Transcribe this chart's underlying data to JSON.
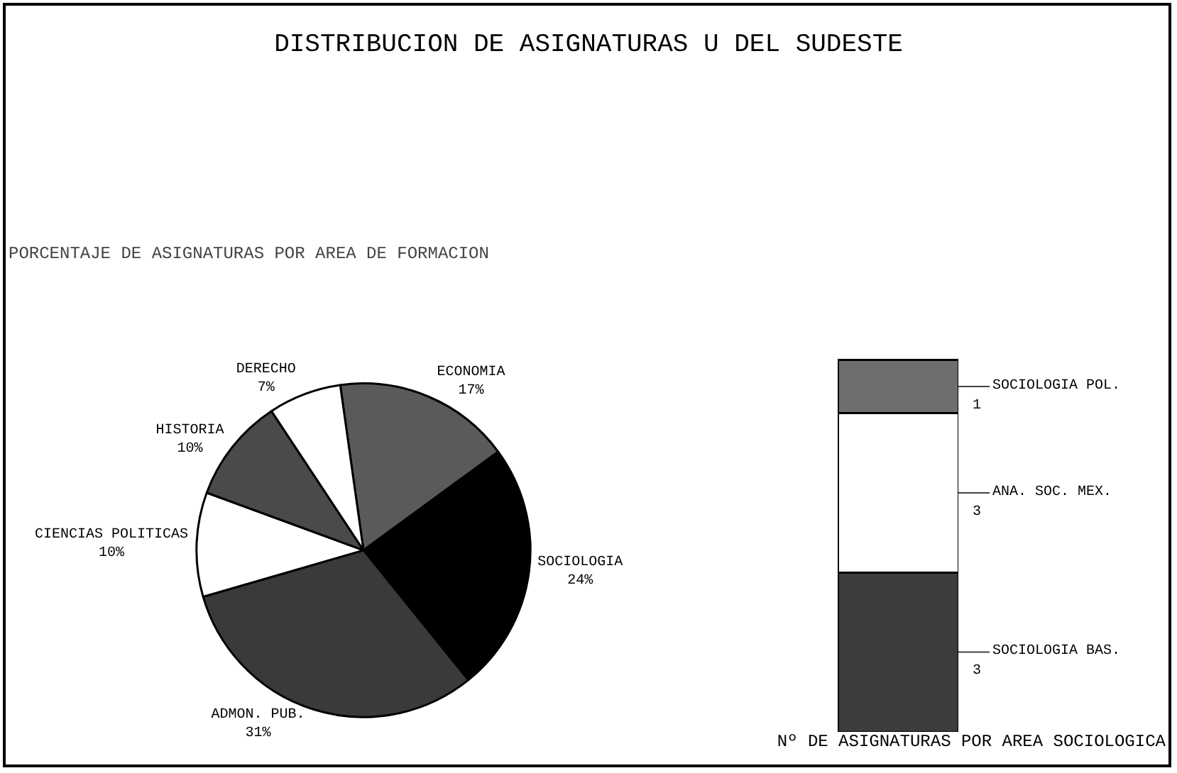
{
  "chart_data": [
    {
      "type": "pie",
      "title": "DISTRIBUCION DE ASIGNATURAS U DEL SUDESTE",
      "subtitle": "PORCENTAJE DE ASIGNATURAS POR AREA DE FORMACION",
      "categories": [
        "ECONOMIA",
        "SOCIOLOGIA",
        "ADMON. PUB.",
        "CIENCIAS POLITICAS",
        "HISTORIA",
        "DERECHO"
      ],
      "values": [
        17,
        24,
        31,
        10,
        10,
        7
      ],
      "value_labels": [
        "17%",
        "24%",
        "31%",
        "10%",
        "10%",
        "7%"
      ],
      "colors": [
        "#5a5a5a",
        "#000000",
        "#3a3a3a",
        "#ffffff",
        "#4a4a4a",
        "#ffffff"
      ]
    },
    {
      "type": "bar",
      "stacked": true,
      "title": "Nº DE ASIGNATURAS POR AREA SOCIOLOGICA",
      "categories": [
        null
      ],
      "data_labels": true,
      "series": [
        {
          "name": "SOCIOLOGIA BAS.",
          "color": "#3c3c3c",
          "values": [
            3
          ]
        },
        {
          "name": "ANA. SOC. MEX.",
          "color": "#ffffff",
          "values": [
            3
          ]
        },
        {
          "name": "SOCIOLOGIA POL.",
          "color": "#6e6e6e",
          "values": [
            1
          ]
        }
      ]
    }
  ]
}
